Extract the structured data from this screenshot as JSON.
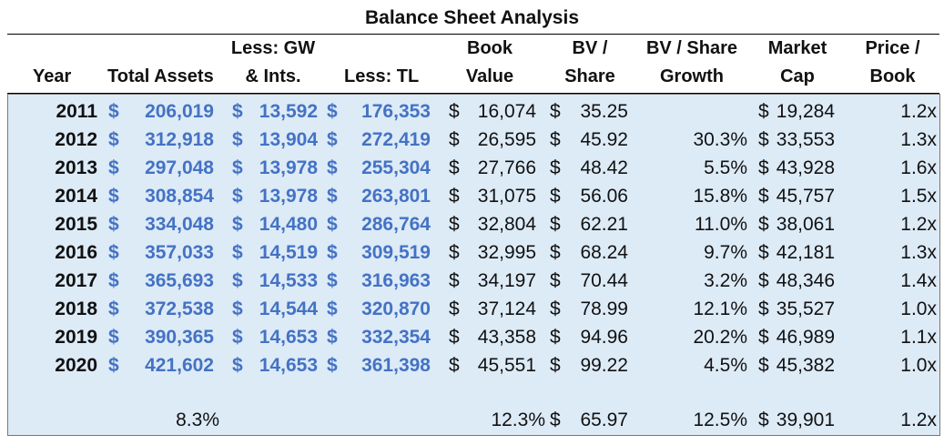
{
  "title": "Balance Sheet Analysis",
  "headers": {
    "year": "Year",
    "total_assets": "Total Assets",
    "less_gw_1": "Less: GW",
    "less_gw_2": "& Ints.",
    "less_tl": "Less: TL",
    "book_value_1": "Book",
    "book_value_2": "Value",
    "bv_share_1": "BV /",
    "bv_share_2": "Share",
    "bv_growth_1": "BV / Share",
    "bv_growth_2": "Growth",
    "market_cap_1": "Market",
    "market_cap_2": "Cap",
    "price_book_1": "Price /",
    "price_book_2": "Book"
  },
  "currency": "$",
  "rows": [
    {
      "year": "2011",
      "total_assets": "206,019",
      "gw": "13,592",
      "tl": "176,353",
      "book_value": "16,074",
      "bv_share": "35.25",
      "growth": "",
      "market_cap": "19,284",
      "price_book": "1.2x"
    },
    {
      "year": "2012",
      "total_assets": "312,918",
      "gw": "13,904",
      "tl": "272,419",
      "book_value": "26,595",
      "bv_share": "45.92",
      "growth": "30.3%",
      "market_cap": "33,553",
      "price_book": "1.3x"
    },
    {
      "year": "2013",
      "total_assets": "297,048",
      "gw": "13,978",
      "tl": "255,304",
      "book_value": "27,766",
      "bv_share": "48.42",
      "growth": "5.5%",
      "market_cap": "43,928",
      "price_book": "1.6x"
    },
    {
      "year": "2014",
      "total_assets": "308,854",
      "gw": "13,978",
      "tl": "263,801",
      "book_value": "31,075",
      "bv_share": "56.06",
      "growth": "15.8%",
      "market_cap": "45,757",
      "price_book": "1.5x"
    },
    {
      "year": "2015",
      "total_assets": "334,048",
      "gw": "14,480",
      "tl": "286,764",
      "book_value": "32,804",
      "bv_share": "62.21",
      "growth": "11.0%",
      "market_cap": "38,061",
      "price_book": "1.2x"
    },
    {
      "year": "2016",
      "total_assets": "357,033",
      "gw": "14,519",
      "tl": "309,519",
      "book_value": "32,995",
      "bv_share": "68.24",
      "growth": "9.7%",
      "market_cap": "42,181",
      "price_book": "1.3x"
    },
    {
      "year": "2017",
      "total_assets": "365,693",
      "gw": "14,533",
      "tl": "316,963",
      "book_value": "34,197",
      "bv_share": "70.44",
      "growth": "3.2%",
      "market_cap": "48,346",
      "price_book": "1.4x"
    },
    {
      "year": "2018",
      "total_assets": "372,538",
      "gw": "14,544",
      "tl": "320,870",
      "book_value": "37,124",
      "bv_share": "78.99",
      "growth": "12.1%",
      "market_cap": "35,527",
      "price_book": "1.0x"
    },
    {
      "year": "2019",
      "total_assets": "390,365",
      "gw": "14,653",
      "tl": "332,354",
      "book_value": "43,358",
      "bv_share": "94.96",
      "growth": "20.2%",
      "market_cap": "46,989",
      "price_book": "1.1x"
    },
    {
      "year": "2020",
      "total_assets": "421,602",
      "gw": "14,653",
      "tl": "361,398",
      "book_value": "45,551",
      "bv_share": "99.22",
      "growth": "4.5%",
      "market_cap": "45,382",
      "price_book": "1.0x"
    }
  ],
  "summary": {
    "total_assets": "8.3%",
    "book_value": "12.3%",
    "bv_share": "65.97",
    "growth": "12.5%",
    "market_cap": "39,901",
    "price_book": "1.2x"
  }
}
